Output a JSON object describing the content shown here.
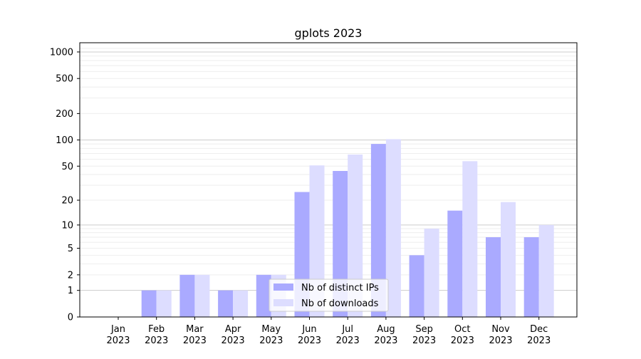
{
  "chart_data": {
    "type": "bar",
    "title": "gplots 2023",
    "xlabel": "",
    "ylabel": "",
    "yscale": "log(1+y)",
    "ylim": [
      0,
      1200
    ],
    "grid": "horizontal major and minor",
    "legend_position": "lower-center",
    "categories": [
      "Jan\n2023",
      "Feb\n2023",
      "Mar\n2023",
      "Apr\n2023",
      "May\n2023",
      "Jun\n2023",
      "Jul\n2023",
      "Aug\n2023",
      "Sep\n2023",
      "Oct\n2023",
      "Nov\n2023",
      "Dec\n2023"
    ],
    "category_labels": [
      [
        "Jan",
        "2023"
      ],
      [
        "Feb",
        "2023"
      ],
      [
        "Mar",
        "2023"
      ],
      [
        "Apr",
        "2023"
      ],
      [
        "May",
        "2023"
      ],
      [
        "Jun",
        "2023"
      ],
      [
        "Jul",
        "2023"
      ],
      [
        "Aug",
        "2023"
      ],
      [
        "Sep",
        "2023"
      ],
      [
        "Oct",
        "2023"
      ],
      [
        "Nov",
        "2023"
      ],
      [
        "Dec",
        "2023"
      ]
    ],
    "yticks": [
      0,
      1,
      2,
      5,
      10,
      20,
      50,
      100,
      200,
      500,
      1000
    ],
    "series": [
      {
        "name": "Nb of distinct IPs",
        "color": "#aaaaff",
        "values": [
          0,
          1,
          2,
          1,
          2,
          25,
          44,
          90,
          4,
          15,
          7,
          7
        ]
      },
      {
        "name": "Nb of downloads",
        "color": "#ddddff",
        "values": [
          0,
          1,
          2,
          1,
          2,
          51,
          68,
          102,
          9,
          57,
          19,
          10
        ]
      }
    ]
  }
}
